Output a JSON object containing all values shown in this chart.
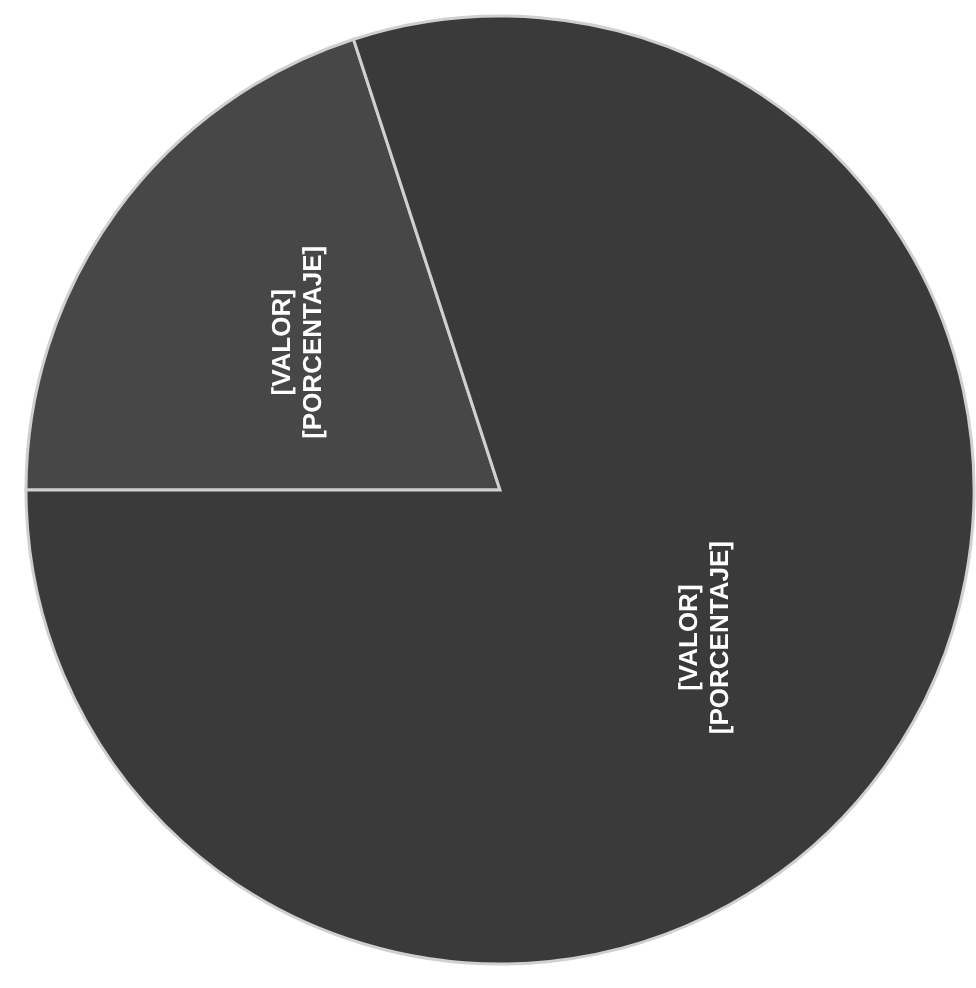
{
  "chart_data": {
    "type": "pie",
    "categories": [
      null,
      null
    ],
    "values": [
      20,
      80
    ],
    "colors": [
      "#474747",
      "#3a3a3a"
    ],
    "value_labels": [
      "[VALOR]\n[PORCENTAJE]",
      "[VALOR]\n[PORCENTAJE]"
    ]
  }
}
